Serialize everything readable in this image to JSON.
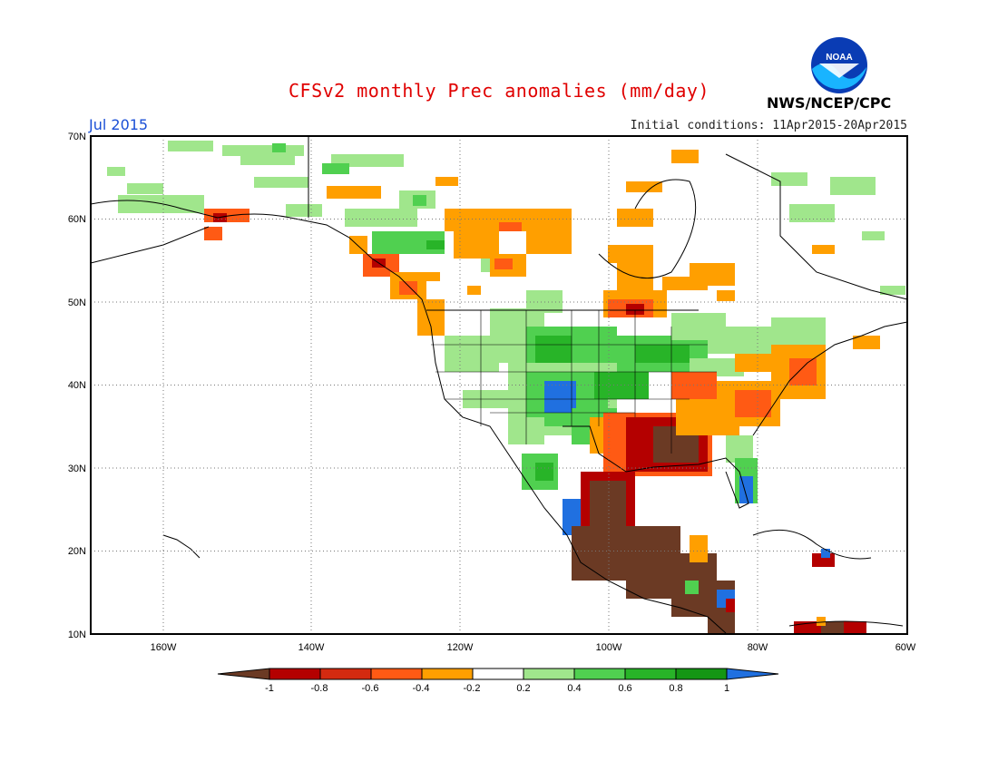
{
  "header": {
    "title": "CFSv2 monthly Prec anomalies (mm/day)",
    "month": "Jul 2015",
    "initial_conditions": "Initial conditions: 11Apr2015-20Apr2015",
    "agency": "NWS/NCEP/CPC",
    "logo_text": "NOAA"
  },
  "map": {
    "lat_labels": [
      "70N",
      "60N",
      "50N",
      "40N",
      "30N",
      "20N",
      "10N"
    ],
    "lon_labels": [
      "160W",
      "140W",
      "120W",
      "100W",
      "80W",
      "60W"
    ]
  },
  "colorbar": {
    "labels": [
      "-1",
      "-0.8",
      "-0.6",
      "-0.4",
      "-0.2",
      "0.2",
      "0.4",
      "0.6",
      "0.8",
      "1"
    ],
    "colors": [
      "#6b3a24",
      "#b40000",
      "#d42a10",
      "#ff5a14",
      "#ff9f00",
      "#ffffff",
      "#a0e68c",
      "#50d050",
      "#28b428",
      "#149614",
      "#2070e0"
    ]
  },
  "colors": {
    "title": "#e00000",
    "month": "#1a4fd6",
    "logo_blue": "#0a3cb4",
    "logo_cyan": "#19b4ff"
  }
}
